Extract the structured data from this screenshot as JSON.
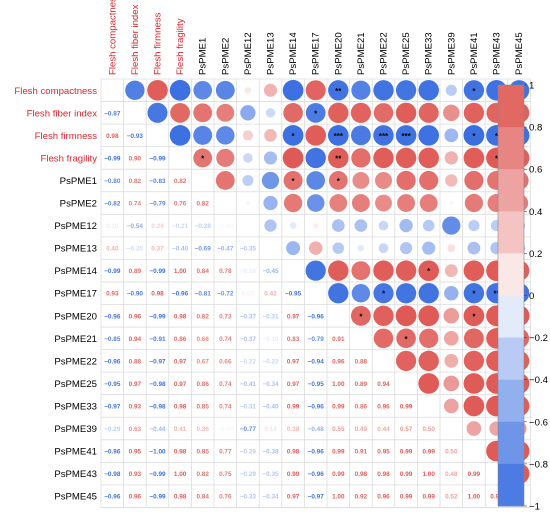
{
  "chart_data": {
    "type": "heatmap",
    "variables": [
      "Flesh compactness",
      "Flesh fiber index",
      "Flesh firmness",
      "Flesh fragility",
      "PsPME1",
      "PsPME2",
      "PsPME12",
      "PsPME13",
      "PsPME14",
      "PsPME17",
      "PsPME20",
      "PsPME21",
      "PsPME22",
      "PsPME25",
      "PsPME33",
      "PsPME39",
      "PsPME41",
      "PsPME43",
      "PsPME45"
    ],
    "highlight_color": "#d9262b",
    "highlight_count": 4,
    "matrix": [
      [
        1,
        -0.87,
        0.98,
        -0.99,
        -0.8,
        -0.82,
        0.1,
        0.4,
        -0.99,
        0.93,
        -0.96,
        -0.85,
        -0.96,
        -0.95,
        -0.97,
        -0.29,
        -0.96,
        -0.98,
        -0.96
      ],
      [
        -0.87,
        1,
        -0.93,
        0.9,
        0.82,
        0.74,
        -0.54,
        -0.2,
        0.89,
        -0.9,
        0.96,
        0.94,
        0.88,
        0.97,
        0.93,
        0.63,
        0.95,
        0.93,
        0.96
      ],
      [
        0.98,
        -0.93,
        1,
        -0.99,
        -0.83,
        -0.79,
        0.24,
        0.37,
        -0.99,
        0.98,
        -0.99,
        -0.91,
        -0.97,
        -0.98,
        -0.98,
        -0.44,
        -1.0,
        -0.99,
        -0.99
      ],
      [
        -0.99,
        0.9,
        -0.99,
        1,
        0.82,
        0.76,
        -0.21,
        -0.4,
        1.0,
        -0.96,
        0.98,
        0.86,
        0.97,
        0.97,
        0.98,
        0.41,
        0.98,
        1.0,
        0.98
      ],
      [
        -0.8,
        0.82,
        -0.83,
        0.82,
        1,
        0.82,
        -0.28,
        -0.69,
        0.84,
        -0.81,
        0.82,
        0.66,
        0.67,
        0.86,
        0.85,
        0.36,
        0.85,
        0.82,
        0.84
      ],
      [
        -0.82,
        0.74,
        -0.79,
        0.76,
        0.82,
        1,
        -0.04,
        -0.47,
        0.78,
        -0.72,
        0.73,
        0.74,
        0.66,
        0.74,
        0.74,
        -0.04,
        0.77,
        0.75,
        0.76
      ],
      [
        0.1,
        -0.54,
        0.24,
        -0.21,
        -0.28,
        -0.04,
        1,
        -0.35,
        -0.1,
        0.07,
        -0.37,
        -0.37,
        -0.22,
        -0.41,
        -0.31,
        -0.77,
        -0.29,
        -0.29,
        -0.33
      ],
      [
        0.4,
        -0.2,
        0.37,
        -0.4,
        -0.69,
        -0.47,
        -0.35,
        1,
        -0.45,
        0.42,
        -0.31,
        -0.1,
        -0.22,
        -0.34,
        -0.4,
        0.14,
        -0.38,
        -0.35,
        -0.34
      ],
      [
        -0.99,
        0.89,
        -0.99,
        1.0,
        0.84,
        0.78,
        -0.1,
        -0.45,
        1,
        -0.95,
        0.97,
        0.83,
        0.97,
        0.97,
        0.99,
        0.38,
        0.98,
        0.99,
        0.97
      ],
      [
        0.93,
        -0.9,
        0.98,
        -0.96,
        -0.81,
        -0.72,
        0.07,
        0.42,
        -0.95,
        1,
        -0.96,
        -0.79,
        -0.94,
        -0.95,
        -0.96,
        -0.48,
        -0.96,
        -0.96,
        -0.97
      ],
      [
        -0.96,
        0.96,
        -0.99,
        0.98,
        0.82,
        0.73,
        -0.37,
        -0.31,
        0.97,
        -0.96,
        1,
        0.91,
        0.96,
        1.0,
        0.99,
        0.55,
        0.99,
        0.99,
        1.0
      ],
      [
        -0.85,
        0.94,
        -0.91,
        0.86,
        0.66,
        0.74,
        -0.37,
        -0.1,
        0.83,
        -0.79,
        0.91,
        1,
        0.88,
        0.89,
        0.86,
        0.49,
        0.91,
        0.98,
        0.92
      ],
      [
        -0.96,
        0.88,
        -0.97,
        0.97,
        0.67,
        0.66,
        -0.22,
        -0.22,
        0.97,
        -0.94,
        0.96,
        0.88,
        1,
        0.94,
        0.96,
        0.44,
        0.95,
        0.98,
        0.96
      ],
      [
        -0.95,
        0.97,
        -0.98,
        0.97,
        0.86,
        0.74,
        -0.41,
        -0.34,
        0.97,
        -0.95,
        1.0,
        0.89,
        0.94,
        1,
        0.99,
        0.57,
        0.99,
        0.99,
        0.99
      ],
      [
        -0.97,
        0.93,
        -0.98,
        0.98,
        0.85,
        0.74,
        -0.31,
        -0.4,
        0.99,
        -0.96,
        0.99,
        0.86,
        0.96,
        0.99,
        1,
        0.5,
        0.99,
        1.0,
        0.99
      ],
      [
        -0.29,
        0.63,
        -0.44,
        0.41,
        0.36,
        -0.04,
        -0.77,
        0.14,
        0.38,
        -0.48,
        0.55,
        0.49,
        0.44,
        0.57,
        0.5,
        1,
        0.5,
        0.48,
        0.52
      ],
      [
        -0.96,
        0.95,
        -1.0,
        0.98,
        0.85,
        0.77,
        -0.29,
        -0.38,
        0.98,
        -0.96,
        0.99,
        0.91,
        0.95,
        0.99,
        0.99,
        0.5,
        1,
        0.99,
        1.0
      ],
      [
        -0.98,
        0.93,
        -0.99,
        1.0,
        0.82,
        0.75,
        -0.29,
        -0.35,
        0.99,
        -0.96,
        0.99,
        0.98,
        0.98,
        0.99,
        1.0,
        0.48,
        0.99,
        1,
        0.99
      ],
      [
        -0.96,
        0.96,
        -0.99,
        0.98,
        0.84,
        0.76,
        -0.33,
        -0.34,
        0.97,
        -0.97,
        1.0,
        0.92,
        0.96,
        0.99,
        0.99,
        0.52,
        1.0,
        0.99,
        1
      ]
    ],
    "lower_labels": [
      [],
      [
        "−0.87"
      ],
      [
        "0.98",
        "−0.93"
      ],
      [
        "−0.99",
        "0.90",
        "−0.99"
      ],
      [
        "−0.80",
        "0.82",
        "−0.83",
        "0.82"
      ],
      [
        "−0.82",
        "0.74",
        "−0.79",
        "0.76",
        "0.82"
      ],
      [
        "0.10",
        "−0.54",
        "0.24",
        "−0.21",
        "−0.28",
        "−0.04"
      ],
      [
        "0.40",
        "−0.20",
        "0.37",
        "−0.40",
        "−0.69",
        "−0.47",
        "−0.35"
      ],
      [
        "−0.99",
        "0.89",
        "−0.99",
        "1.00",
        "0.84",
        "0.78",
        "−0.10",
        "−0.45"
      ],
      [
        "0.93",
        "−0.90",
        "0.98",
        "−0.96",
        "−0.81",
        "−0.72",
        "0.07",
        "0.42",
        "−0.95"
      ],
      [
        "−0.96",
        "0.96",
        "−0.99",
        "0.98",
        "0.82",
        "0.73",
        "−0.37",
        "−0.31",
        "0.97",
        "−0.96"
      ],
      [
        "−0.85",
        "0.94",
        "−0.91",
        "0.86",
        "0.66",
        "0.74",
        "−0.37",
        "−0.10",
        "0.83",
        "−0.79",
        "0.91"
      ],
      [
        "−0.96",
        "0.88",
        "−0.97",
        "0.97",
        "0.67",
        "0.66",
        "−0.22",
        "−0.22",
        "0.97",
        "−0.94",
        "0.96",
        "0.88"
      ],
      [
        "−0.95",
        "0.97",
        "−0.98",
        "0.97",
        "0.86",
        "0.74",
        "−0.41",
        "−0.34",
        "0.97",
        "−0.95",
        "1.00",
        "0.89",
        "0.94"
      ],
      [
        "−0.97",
        "0.93",
        "−0.98",
        "0.98",
        "0.85",
        "0.74",
        "−0.31",
        "−0.40",
        "0.99",
        "−0.96",
        "0.99",
        "0.86",
        "0.96",
        "0.99"
      ],
      [
        "−0.29",
        "0.63",
        "−0.44",
        "0.41",
        "0.36",
        "−0.04",
        "−0.77",
        "0.14",
        "0.38",
        "−0.48",
        "0.55",
        "0.49",
        "0.44",
        "0.57",
        "0.50"
      ],
      [
        "−0.96",
        "0.95",
        "−1.00",
        "0.98",
        "0.85",
        "0.77",
        "−0.29",
        "−0.38",
        "0.98",
        "−0.96",
        "0.99",
        "0.91",
        "0.95",
        "0.99",
        "0.99",
        "0.50"
      ],
      [
        "−0.98",
        "0.93",
        "−0.99",
        "1.00",
        "0.82",
        "0.75",
        "−0.29",
        "−0.35",
        "0.99",
        "−0.96",
        "0.99",
        "0.98",
        "0.98",
        "0.99",
        "1.00",
        "0.48",
        "0.99"
      ],
      [
        "−0.96",
        "0.96",
        "−0.99",
        "0.98",
        "0.84",
        "0.76",
        "−0.33",
        "−0.34",
        "0.97",
        "−0.97",
        "1.00",
        "0.92",
        "0.96",
        "0.99",
        "0.99",
        "0.52",
        "1.00",
        "0.99"
      ]
    ],
    "significance": [
      {
        "row": 0,
        "col": 10,
        "mark": "**"
      },
      {
        "row": 0,
        "col": 16,
        "mark": "*"
      },
      {
        "row": 0,
        "col": 18,
        "mark": "*"
      },
      {
        "row": 1,
        "col": 9,
        "mark": "*"
      },
      {
        "row": 2,
        "col": 8,
        "mark": "*"
      },
      {
        "row": 2,
        "col": 10,
        "mark": "***"
      },
      {
        "row": 2,
        "col": 12,
        "mark": "***"
      },
      {
        "row": 2,
        "col": 13,
        "mark": "***"
      },
      {
        "row": 2,
        "col": 16,
        "mark": "*"
      },
      {
        "row": 2,
        "col": 17,
        "mark": "*"
      },
      {
        "row": 2,
        "col": 18,
        "mark": "*"
      },
      {
        "row": 3,
        "col": 4,
        "mark": "*"
      },
      {
        "row": 3,
        "col": 10,
        "mark": "**"
      },
      {
        "row": 3,
        "col": 17,
        "mark": "*"
      },
      {
        "row": 4,
        "col": 8,
        "mark": "*"
      },
      {
        "row": 4,
        "col": 10,
        "mark": "*"
      },
      {
        "row": 8,
        "col": 14,
        "mark": "*"
      },
      {
        "row": 9,
        "col": 12,
        "mark": "*"
      },
      {
        "row": 9,
        "col": 16,
        "mark": "*"
      },
      {
        "row": 9,
        "col": 17,
        "mark": "**"
      },
      {
        "row": 10,
        "col": 11,
        "mark": "*"
      },
      {
        "row": 10,
        "col": 16,
        "mark": "*"
      },
      {
        "row": 11,
        "col": 13,
        "mark": "*"
      },
      {
        "row": 11,
        "col": 18,
        "mark": "*"
      },
      {
        "row": 17,
        "col": 18,
        "mark": "**"
      }
    ],
    "color_scale": {
      "min": -1,
      "max": 1,
      "ticks": [
        "1",
        "0.8",
        "0.6",
        "0.4",
        "0.2",
        "0",
        "−0.2",
        "−0.4",
        "−0.6",
        "−0.8",
        "−1"
      ],
      "negative_color": "#3b6fe0",
      "neutral_color": "#ffffff",
      "positive_color": "#df5a56"
    }
  }
}
